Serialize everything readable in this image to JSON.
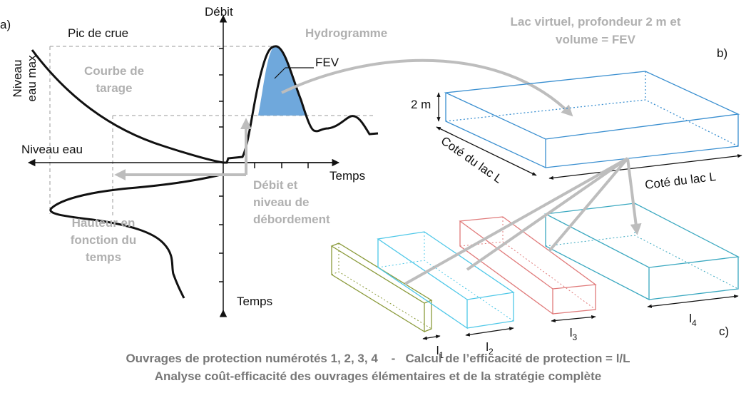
{
  "panel_a": {
    "label": "a)",
    "y_axis": "Débit",
    "x_axis": "Temps",
    "x_axis_left": "Niveau eau",
    "y_axis_bottom": "Temps",
    "peak": "Pic de crue",
    "hydrograph": "Hydrogramme",
    "fev": "FEV",
    "max_level": [
      "Niveau",
      "eau max"
    ],
    "rating_curve": [
      "Courbe de",
      "tarage"
    ],
    "overflow": [
      "Débit et",
      "niveau de",
      "débordement"
    ],
    "height_time": [
      "Hauteur en",
      "fonction du",
      "temps"
    ]
  },
  "panel_b": {
    "label": "b)",
    "title": [
      "Lac virtuel, profondeur 2 m et",
      "volume = FEV"
    ],
    "depth": "2 m",
    "side_1": "Coté du lac L",
    "side_2": "Coté du lac L"
  },
  "panel_c": {
    "label": "c)",
    "widths": [
      {
        "letter": "l",
        "index": "1"
      },
      {
        "letter": "l",
        "index": "2"
      },
      {
        "letter": "l",
        "index": "3"
      },
      {
        "letter": "l",
        "index": "4"
      }
    ]
  },
  "caption": [
    "Ouvrages de protection numérotés 1, 2, 3, 4    -   Calcul de l’efficacité de protection = l/L",
    "Analyse coût-efficacité des ouvrages élémentaires et de la stratégie complète"
  ]
}
